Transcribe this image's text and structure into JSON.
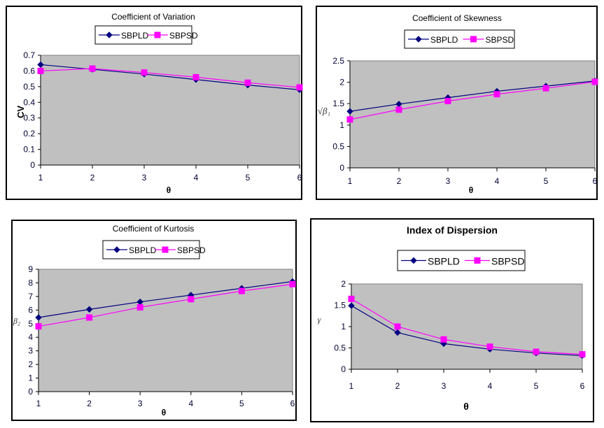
{
  "colors": {
    "SBPLD": "#000080",
    "SBPSD": "#FF00FF",
    "plot_bg": "#C0C0C0"
  },
  "chart_data": [
    {
      "type": "line",
      "title": "Coefficient of Variation",
      "xlabel": "θ",
      "ylabel": "CV",
      "ylabel_style": "bold-rotated",
      "x": [
        1,
        2,
        3,
        4,
        5,
        6
      ],
      "x_tick_labels": [
        "1",
        "2",
        "3",
        "4",
        "5",
        "6"
      ],
      "ylim": [
        0,
        0.7
      ],
      "y_tick_labels": [
        "0",
        "0.1",
        "0.2",
        "0.3",
        "0.4",
        "0.5",
        "0.6",
        "0.7"
      ],
      "y_ticks": [
        0,
        0.1,
        0.2,
        0.3,
        0.4,
        0.5,
        0.6,
        0.7
      ],
      "grid": false,
      "legend_position": "top",
      "series": [
        {
          "name": "SBPLD",
          "marker": "diamond",
          "values": [
            0.64,
            0.61,
            0.58,
            0.545,
            0.51,
            0.48
          ]
        },
        {
          "name": "SBPSD",
          "marker": "square",
          "values": [
            0.6,
            0.615,
            0.59,
            0.56,
            0.525,
            0.495
          ]
        }
      ]
    },
    {
      "type": "line",
      "title": "Coefficient of Skewness",
      "xlabel": "θ",
      "ylabel": "√β₁",
      "ylabel_style": "italic",
      "x": [
        1,
        2,
        3,
        4,
        5,
        6
      ],
      "x_tick_labels": [
        "1",
        "2",
        "3",
        "4",
        "5",
        "6"
      ],
      "ylim": [
        0,
        2.5
      ],
      "y_tick_labels": [
        "0",
        "0.5",
        "1",
        "1.5",
        "2",
        "2.5"
      ],
      "y_ticks": [
        0,
        0.5,
        1,
        1.5,
        2,
        2.5
      ],
      "grid": false,
      "legend_position": "top",
      "series": [
        {
          "name": "SBPLD",
          "marker": "diamond",
          "values": [
            1.32,
            1.49,
            1.64,
            1.79,
            1.91,
            2.03
          ]
        },
        {
          "name": "SBPSD",
          "marker": "square",
          "values": [
            1.13,
            1.36,
            1.56,
            1.72,
            1.86,
            2.01
          ]
        }
      ]
    },
    {
      "type": "line",
      "title": "Coefficient of Kurtosis",
      "xlabel": "θ",
      "ylabel": "β₂",
      "ylabel_style": "italic",
      "x": [
        1,
        2,
        3,
        4,
        5,
        6
      ],
      "x_tick_labels": [
        "1",
        "2",
        "3",
        "4",
        "5",
        "6"
      ],
      "ylim": [
        0,
        9
      ],
      "y_tick_labels": [
        "0",
        "1",
        "2",
        "3",
        "4",
        "5",
        "6",
        "7",
        "8",
        "9"
      ],
      "y_ticks": [
        0,
        1,
        2,
        3,
        4,
        5,
        6,
        7,
        8,
        9
      ],
      "grid": false,
      "legend_position": "top",
      "series": [
        {
          "name": "SBPLD",
          "marker": "diamond",
          "values": [
            5.45,
            6.05,
            6.6,
            7.1,
            7.6,
            8.1
          ]
        },
        {
          "name": "SBPSD",
          "marker": "square",
          "values": [
            4.8,
            5.45,
            6.2,
            6.8,
            7.4,
            7.9
          ]
        }
      ]
    },
    {
      "type": "line",
      "title": "Index of Dispersion",
      "xlabel": "θ",
      "ylabel": "γ",
      "ylabel_style": "italic",
      "x": [
        1,
        2,
        3,
        4,
        5,
        6
      ],
      "x_tick_labels": [
        "1",
        "2",
        "3",
        "4",
        "5",
        "6"
      ],
      "ylim": [
        0,
        2
      ],
      "y_tick_labels": [
        "0",
        "0.5",
        "1",
        "1.5",
        "2"
      ],
      "y_ticks": [
        0,
        0.5,
        1,
        1.5,
        2
      ],
      "grid": false,
      "legend_position": "top",
      "series": [
        {
          "name": "SBPLD",
          "marker": "diamond",
          "values": [
            1.49,
            0.86,
            0.6,
            0.47,
            0.38,
            0.32
          ]
        },
        {
          "name": "SBPSD",
          "marker": "square",
          "values": [
            1.65,
            1.0,
            0.7,
            0.53,
            0.41,
            0.35
          ]
        }
      ]
    }
  ]
}
